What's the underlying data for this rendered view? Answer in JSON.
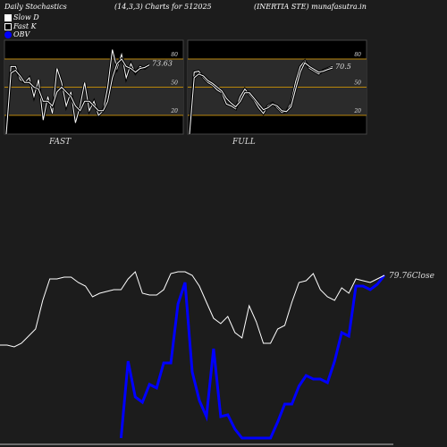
{
  "header": {
    "left": "Daily Stochastics",
    "center": "(14,3,3) Charts for 512025",
    "right": "(INERTIA STE) munafasutra.in"
  },
  "legend": [
    {
      "label": "Slow  D",
      "swatch": "slow"
    },
    {
      "label": "Fast K",
      "swatch": "fast"
    },
    {
      "label": "OBV",
      "swatch": "obv"
    }
  ],
  "colors": {
    "background": "#1c1c1c",
    "panel_bg": "#000000",
    "band_fill": "#2b2b2b",
    "level_line": "#b8860b",
    "line": "#ffffff",
    "obv": "#0000ff"
  },
  "chart_data": [
    {
      "type": "line",
      "panel": "FAST",
      "label": "FAST",
      "ylim": [
        0,
        100
      ],
      "yticks": [
        80,
        50,
        20
      ],
      "levels": [
        80,
        50,
        20
      ],
      "last_value_label": "73.63",
      "series": [
        {
          "name": "Fast K",
          "values": [
            0,
            72,
            72,
            58,
            55,
            60,
            40,
            58,
            15,
            40,
            22,
            70,
            55,
            30,
            45,
            12,
            30,
            55,
            25,
            35,
            20,
            25,
            50,
            90,
            70,
            85,
            60,
            75,
            65,
            72,
            70,
            74
          ]
        },
        {
          "name": "Slow  D",
          "values": [
            0,
            65,
            68,
            62,
            55,
            55,
            50,
            48,
            35,
            35,
            30,
            45,
            50,
            45,
            40,
            30,
            25,
            35,
            35,
            30,
            25,
            25,
            35,
            60,
            75,
            80,
            72,
            70,
            66,
            70,
            71,
            73.63
          ]
        }
      ]
    },
    {
      "type": "line",
      "panel": "FULL",
      "label": "FULL",
      "ylim": [
        0,
        100
      ],
      "yticks": [
        80,
        50,
        20
      ],
      "levels": [
        80,
        50,
        20
      ],
      "last_value_label": "70.5",
      "series": [
        {
          "name": "Fast K",
          "values": [
            0,
            66,
            67,
            60,
            55,
            52,
            47,
            44,
            32,
            30,
            27,
            40,
            48,
            42,
            36,
            28,
            22,
            30,
            33,
            28,
            23,
            24,
            33,
            56,
            72,
            78,
            70,
            67,
            64,
            68,
            70,
            72
          ]
        },
        {
          "name": "Slow  D",
          "values": [
            0,
            60,
            64,
            62,
            57,
            54,
            50,
            46,
            38,
            33,
            29,
            35,
            44,
            44,
            38,
            32,
            26,
            28,
            32,
            30,
            25,
            24,
            29,
            48,
            66,
            76,
            72,
            69,
            66,
            67,
            69,
            70.5
          ]
        }
      ]
    },
    {
      "type": "line",
      "panel": "PRICE",
      "last_value_label": "79.76Close",
      "series": [
        {
          "name": "Close",
          "values": [
            57,
            57,
            56,
            58,
            62,
            66,
            82,
            94,
            94,
            95,
            95,
            92,
            90,
            84,
            86,
            87,
            88,
            88,
            94,
            98,
            86,
            85,
            85,
            88,
            97,
            98,
            98,
            96,
            90,
            81,
            72,
            69,
            73,
            64,
            61,
            79,
            70,
            58,
            58,
            66,
            68,
            81,
            92,
            93,
            97,
            88,
            84,
            82,
            89,
            86,
            94,
            93,
            92,
            94,
            96
          ]
        },
        {
          "name": "OBV",
          "values": [
            null,
            null,
            null,
            null,
            null,
            null,
            null,
            null,
            null,
            null,
            null,
            null,
            null,
            null,
            null,
            null,
            null,
            5,
            48,
            28,
            25,
            35,
            33,
            47,
            47,
            80,
            92,
            42,
            26,
            17,
            55,
            17,
            18,
            10,
            5,
            5,
            5,
            5,
            5,
            14,
            24,
            24,
            34,
            40,
            38,
            38,
            36,
            48,
            64,
            62,
            90,
            90,
            88,
            91,
            96
          ]
        }
      ]
    }
  ]
}
